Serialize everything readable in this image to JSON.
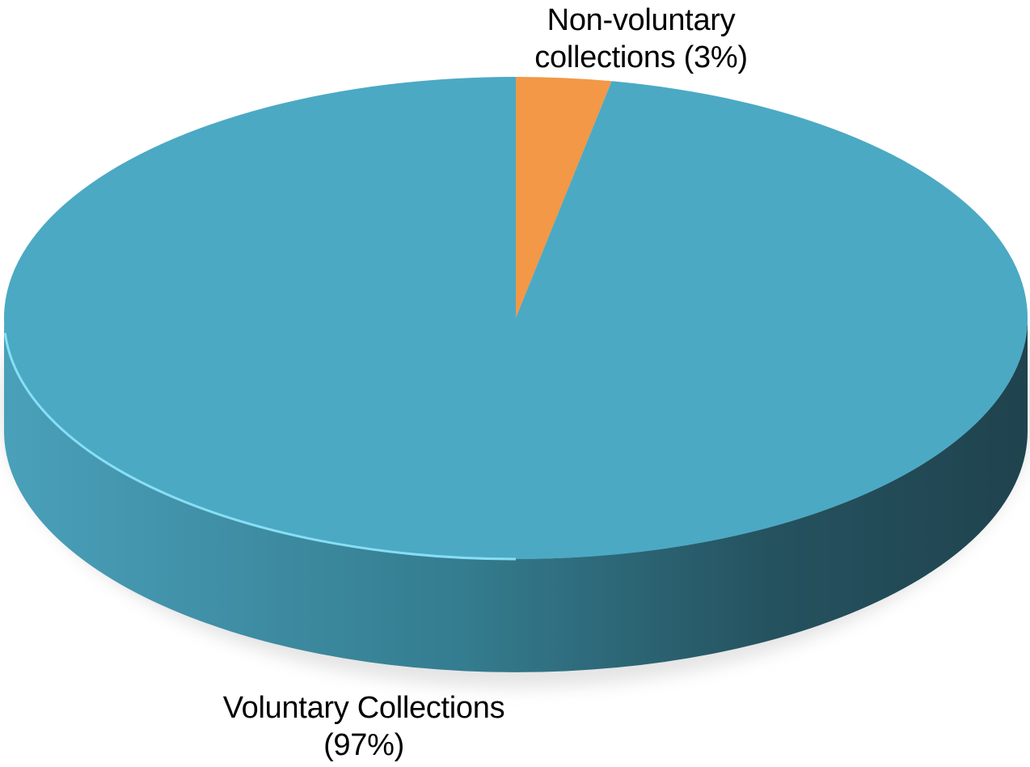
{
  "chart_data": {
    "type": "pie",
    "style": "3d",
    "slices": [
      {
        "label_lines": [
          "Non-voluntary",
          "collections (3%)"
        ],
        "value": 3,
        "color": "#F29846"
      },
      {
        "label_lines": [
          "Voluntary Collections",
          "(97%)"
        ],
        "value": 97,
        "color": "#4BA9C4"
      }
    ],
    "side_colors": {
      "light": "#4AA0BA",
      "dark": "#1F434E"
    },
    "legend": "none",
    "grid": false
  }
}
